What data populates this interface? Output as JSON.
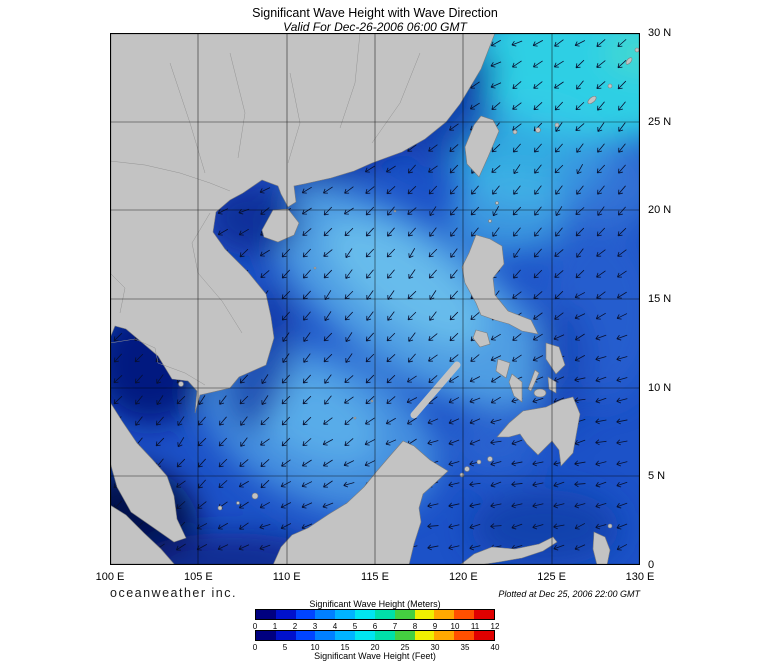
{
  "header": {
    "title": "Significant Wave Height with Wave Direction",
    "subtitle": "Valid For Dec-26-2006 06:00 GMT"
  },
  "map": {
    "lon_labels": [
      "100 E",
      "105 E",
      "110 E",
      "115 E",
      "120 E",
      "125 E",
      "130 E"
    ],
    "lat_labels": [
      "30 N",
      "25 N",
      "20 N",
      "15 N",
      "10 N",
      "5 N",
      "0"
    ]
  },
  "footer": {
    "branding": "oceanweather inc.",
    "plotted": "Plotted at Dec 25, 2006 22:00 GMT"
  },
  "legend": {
    "meters_label": "Significant Wave Height (Meters)",
    "feet_label": "Significant Wave Height (Feet)",
    "meters_ticks": [
      "0",
      "1",
      "2",
      "3",
      "4",
      "5",
      "6",
      "7",
      "8",
      "9",
      "10",
      "11",
      "12"
    ],
    "feet_ticks": [
      "0",
      "5",
      "10",
      "15",
      "20",
      "25",
      "30",
      "35",
      "40"
    ],
    "colors": [
      "#000080",
      "#0011cc",
      "#0044ff",
      "#0080ff",
      "#00b4ff",
      "#00e6f0",
      "#00e0a8",
      "#44d040",
      "#f0f000",
      "#ffa800",
      "#ff5000",
      "#e00000"
    ]
  }
}
